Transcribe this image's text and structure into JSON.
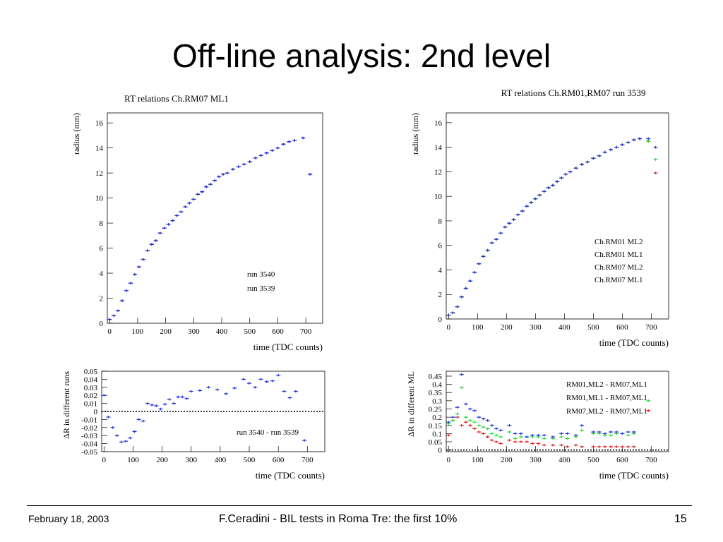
{
  "slide": {
    "title": "Off-line analysis: 2nd level",
    "footer_left": "February 18, 2003",
    "footer_center": "F.Ceradini - BIL tests in Roma Tre: the first 10%",
    "footer_right": "15"
  },
  "chart_data": [
    {
      "type": "scatter",
      "title": "RT relations Ch.RM07 ML1",
      "xlabel": "time (TDC counts)",
      "ylabel": "radius (mm)",
      "xlim": [
        -8,
        760
      ],
      "ylim": [
        0,
        16.8
      ],
      "xticks": [
        0,
        100,
        200,
        300,
        400,
        500,
        600,
        700
      ],
      "yticks": [
        0,
        2,
        4,
        6,
        8,
        10,
        12,
        14,
        16
      ],
      "legend_position": "center-right",
      "series": [
        {
          "name": "run 3540",
          "color": "#2233dd",
          "x": [
            0,
            15,
            30,
            45,
            60,
            75,
            90,
            105,
            120,
            135,
            150,
            165,
            180,
            195,
            210,
            225,
            240,
            255,
            270,
            285,
            300,
            315,
            330,
            345,
            360,
            375,
            390,
            405,
            420,
            440,
            460,
            480,
            500,
            520,
            540,
            560,
            580,
            600,
            620,
            640,
            660,
            690,
            715
          ],
          "y": [
            0.3,
            0.6,
            1.0,
            1.8,
            2.6,
            3.2,
            3.9,
            4.5,
            5.1,
            5.8,
            6.3,
            6.6,
            7.2,
            7.6,
            7.9,
            8.2,
            8.6,
            8.9,
            9.3,
            9.6,
            9.9,
            10.3,
            10.5,
            10.9,
            11.1,
            11.4,
            11.7,
            11.9,
            12.0,
            12.3,
            12.5,
            12.7,
            12.9,
            13.2,
            13.4,
            13.6,
            13.8,
            14.0,
            14.3,
            14.5,
            14.6,
            14.8,
            11.9
          ]
        },
        {
          "name": "run 3539",
          "color": "#222222",
          "x": [
            0,
            15,
            30,
            45,
            60,
            75,
            90,
            105,
            120,
            135,
            150,
            165,
            180,
            195,
            210,
            225,
            240,
            255,
            270,
            285,
            300,
            315,
            330,
            345,
            360,
            375,
            390,
            405,
            420,
            440,
            460,
            480,
            500,
            520,
            540,
            560,
            580,
            600,
            620,
            640,
            660,
            690,
            715
          ],
          "y": [
            0.3,
            0.6,
            1.0,
            1.8,
            2.6,
            3.2,
            3.9,
            4.5,
            5.1,
            5.8,
            6.3,
            6.6,
            7.2,
            7.6,
            7.9,
            8.2,
            8.6,
            8.9,
            9.3,
            9.6,
            9.9,
            10.3,
            10.5,
            10.9,
            11.1,
            11.4,
            11.7,
            11.9,
            12.0,
            12.3,
            12.5,
            12.7,
            12.9,
            13.2,
            13.4,
            13.6,
            13.8,
            14.0,
            14.3,
            14.5,
            14.6,
            14.8,
            11.9
          ]
        }
      ]
    },
    {
      "type": "scatter",
      "title": "RT relations Ch.RM01,RM07 run 3539",
      "xlabel": "time (TDC counts)",
      "ylabel": "radius (mm)",
      "xlim": [
        -8,
        760
      ],
      "ylim": [
        0,
        16.8
      ],
      "xticks": [
        0,
        100,
        200,
        300,
        400,
        500,
        600,
        700
      ],
      "yticks": [
        0,
        2,
        4,
        6,
        8,
        10,
        12,
        14,
        16
      ],
      "legend_position": "center-right",
      "series": [
        {
          "name": "Ch.RM01 ML2",
          "color": "#2233dd",
          "x": [
            0,
            15,
            30,
            45,
            60,
            75,
            90,
            105,
            120,
            135,
            150,
            165,
            180,
            195,
            210,
            225,
            240,
            255,
            270,
            285,
            300,
            315,
            330,
            345,
            360,
            375,
            390,
            405,
            420,
            440,
            460,
            480,
            500,
            520,
            540,
            560,
            580,
            600,
            620,
            640,
            660,
            690,
            715
          ],
          "y": [
            0.3,
            0.5,
            1.0,
            1.8,
            2.5,
            3.1,
            3.8,
            4.5,
            5.1,
            5.6,
            6.2,
            6.5,
            7.0,
            7.5,
            7.8,
            8.1,
            8.5,
            8.8,
            9.2,
            9.5,
            9.8,
            10.1,
            10.4,
            10.7,
            10.9,
            11.2,
            11.5,
            11.8,
            12.0,
            12.3,
            12.6,
            12.8,
            13.1,
            13.3,
            13.6,
            13.8,
            14.0,
            14.2,
            14.4,
            14.6,
            14.7,
            14.7,
            14.0
          ]
        },
        {
          "name": "Ch.RM01 ML1",
          "color": "#22dd33",
          "x": [
            0,
            15,
            30,
            45,
            60,
            75,
            90,
            105,
            120,
            135,
            150,
            165,
            180,
            195,
            210,
            225,
            240,
            255,
            270,
            285,
            300,
            315,
            330,
            345,
            360,
            375,
            390,
            405,
            420,
            440,
            460,
            480,
            500,
            520,
            540,
            560,
            580,
            600,
            620,
            640,
            660,
            690,
            715
          ],
          "y": [
            0.3,
            0.5,
            1.0,
            1.8,
            2.5,
            3.1,
            3.8,
            4.5,
            5.1,
            5.6,
            6.2,
            6.5,
            7.0,
            7.5,
            7.8,
            8.1,
            8.5,
            8.8,
            9.2,
            9.5,
            9.8,
            10.1,
            10.4,
            10.7,
            10.9,
            11.2,
            11.5,
            11.8,
            12.0,
            12.3,
            12.6,
            12.8,
            13.1,
            13.3,
            13.6,
            13.8,
            14.0,
            14.2,
            14.4,
            14.6,
            14.7,
            14.5,
            13.0
          ]
        },
        {
          "name": "Ch.RM07 ML2",
          "color": "#dd2222",
          "x": [
            0,
            15,
            30,
            45,
            60,
            75,
            90,
            105,
            120,
            135,
            150,
            165,
            180,
            195,
            210,
            225,
            240,
            255,
            270,
            285,
            300,
            315,
            330,
            345,
            360,
            375,
            390,
            405,
            420,
            440,
            460,
            480,
            500,
            520,
            540,
            560,
            580,
            600,
            620,
            640,
            660,
            690,
            715
          ],
          "y": [
            0.3,
            0.5,
            1.0,
            1.8,
            2.5,
            3.1,
            3.8,
            4.5,
            5.1,
            5.6,
            6.2,
            6.5,
            7.0,
            7.5,
            7.8,
            8.1,
            8.5,
            8.8,
            9.2,
            9.5,
            9.8,
            10.1,
            10.4,
            10.7,
            10.9,
            11.2,
            11.5,
            11.8,
            12.0,
            12.3,
            12.6,
            12.8,
            13.1,
            13.3,
            13.6,
            13.8,
            14.0,
            14.2,
            14.4,
            14.6,
            14.7,
            14.5,
            11.9
          ]
        },
        {
          "name": "Ch.RM07 ML1",
          "color": "#222222",
          "x": [
            0,
            15,
            30,
            45,
            60,
            75,
            90,
            105,
            120,
            135,
            150,
            165,
            180,
            195,
            210,
            225,
            240,
            255,
            270,
            285,
            300,
            315,
            330,
            345,
            360,
            375,
            390,
            405,
            420,
            440,
            460,
            480,
            500,
            520,
            540,
            560,
            580,
            600,
            620,
            640,
            660,
            690
          ],
          "y": [
            0.3,
            0.5,
            1.0,
            1.8,
            2.5,
            3.1,
            3.8,
            4.5,
            5.1,
            5.6,
            6.2,
            6.5,
            7.0,
            7.5,
            7.8,
            8.1,
            8.5,
            8.8,
            9.2,
            9.5,
            9.8,
            10.1,
            10.4,
            10.7,
            10.9,
            11.2,
            11.5,
            11.8,
            12.0,
            12.3,
            12.6,
            12.8,
            13.1,
            13.3,
            13.6,
            13.8,
            14.0,
            14.2,
            14.4,
            14.6,
            14.7,
            14.5
          ]
        }
      ]
    },
    {
      "type": "scatter",
      "title": "",
      "xlabel": "time (TDC counts)",
      "ylabel": "ΔR in different runs",
      "xlim": [
        -8,
        760
      ],
      "ylim": [
        -0.05,
        0.05
      ],
      "xticks": [
        0,
        100,
        200,
        300,
        400,
        500,
        600,
        700
      ],
      "yticks": [
        -0.05,
        -0.04,
        -0.03,
        -0.02,
        -0.01,
        0,
        0.01,
        0.02,
        0.03,
        0.04,
        0.05
      ],
      "ytick_labels": [
        "-0.05",
        "-0.04",
        "-0.03",
        "-0.02",
        "-0.01",
        "0",
        "0.01",
        "0.02",
        "0.03",
        "0.04",
        "0.05"
      ],
      "zero_line": true,
      "legend_position": "bottom-right",
      "series": [
        {
          "name": "run 3540 - run 3539",
          "color": "#2233dd",
          "x": [
            0,
            15,
            30,
            45,
            60,
            75,
            90,
            105,
            120,
            135,
            150,
            165,
            180,
            195,
            210,
            225,
            240,
            255,
            270,
            285,
            300,
            330,
            360,
            390,
            420,
            450,
            480,
            500,
            520,
            540,
            560,
            580,
            600,
            620,
            640,
            660,
            690
          ],
          "y": [
            0.02,
            -0.007,
            -0.02,
            -0.03,
            -0.038,
            -0.037,
            -0.033,
            -0.025,
            -0.01,
            -0.012,
            0.01,
            0.008,
            0.007,
            0.003,
            0.009,
            0.015,
            0.01,
            0.018,
            0.018,
            0.016,
            0.025,
            0.026,
            0.03,
            0.027,
            0.022,
            0.029,
            0.04,
            0.035,
            0.03,
            0.04,
            0.037,
            0.038,
            0.045,
            0.025,
            0.017,
            0.025,
            -0.036
          ]
        }
      ]
    },
    {
      "type": "scatter",
      "title": "",
      "xlabel": "time (TDC counts)",
      "ylabel": "ΔR in different ML",
      "xlim": [
        -8,
        760
      ],
      "ylim": [
        -0.01,
        0.48
      ],
      "xticks": [
        0,
        100,
        200,
        300,
        400,
        500,
        600,
        700
      ],
      "yticks": [
        0,
        0.05,
        0.1,
        0.15,
        0.2,
        0.25,
        0.3,
        0.35,
        0.4,
        0.45
      ],
      "ytick_labels": [
        "0",
        "0.05",
        "0.1",
        "0.15",
        "0.2",
        "0.25",
        "0.3",
        "0.35",
        "0.4",
        "0.45"
      ],
      "zero_line": true,
      "legend_position": "top-right",
      "series": [
        {
          "name": "RM01,ML2 - RM07,ML1",
          "color": "#2233dd",
          "x": [
            0,
            15,
            30,
            45,
            60,
            75,
            90,
            105,
            120,
            135,
            150,
            165,
            180,
            210,
            230,
            250,
            270,
            290,
            310,
            330,
            360,
            390,
            410,
            440,
            460,
            500,
            520,
            540,
            560,
            580,
            600,
            620,
            640
          ],
          "y": [
            0.17,
            0.2,
            0.26,
            0.46,
            0.28,
            0.25,
            0.24,
            0.2,
            0.19,
            0.18,
            0.15,
            0.13,
            0.12,
            0.15,
            0.1,
            0.1,
            0.08,
            0.09,
            0.09,
            0.09,
            0.08,
            0.1,
            0.1,
            0.09,
            0.15,
            0.11,
            0.11,
            0.1,
            0.11,
            0.11,
            0.1,
            0.11,
            0.11
          ]
        },
        {
          "name": "RM01,ML1 - RM07,ML1",
          "color": "#22dd33",
          "x": [
            0,
            15,
            30,
            45,
            60,
            75,
            90,
            105,
            120,
            135,
            150,
            165,
            180,
            210,
            230,
            250,
            270,
            290,
            310,
            330,
            360,
            390,
            410,
            440,
            460,
            500,
            520,
            540,
            560,
            580,
            600,
            620,
            640,
            690
          ],
          "y": [
            0.16,
            0.18,
            0.22,
            0.38,
            0.2,
            0.18,
            0.17,
            0.15,
            0.14,
            0.13,
            0.1,
            0.09,
            0.08,
            0.11,
            0.07,
            0.08,
            0.08,
            0.08,
            0.08,
            0.07,
            0.07,
            0.08,
            0.07,
            0.08,
            0.12,
            0.1,
            0.1,
            0.09,
            0.09,
            0.1,
            0.1,
            0.09,
            0.1,
            0.3
          ]
        },
        {
          "name": "RM07,ML2 - RM07,ML1",
          "color": "#dd2222",
          "x": [
            0,
            15,
            30,
            45,
            60,
            75,
            90,
            105,
            120,
            135,
            150,
            165,
            180,
            210,
            230,
            250,
            270,
            290,
            310,
            330,
            360,
            390,
            410,
            440,
            460,
            500,
            520,
            540,
            560,
            580,
            600,
            620,
            640,
            690
          ],
          "y": [
            0.09,
            0.18,
            0.2,
            0.15,
            0.17,
            0.15,
            0.13,
            0.11,
            0.1,
            0.08,
            0.06,
            0.05,
            0.04,
            0.06,
            0.05,
            0.05,
            0.05,
            0.04,
            0.04,
            0.03,
            0.03,
            0.03,
            0.02,
            0.03,
            0.02,
            0.02,
            0.02,
            0.02,
            0.02,
            0.02,
            0.02,
            0.02,
            0.02,
            0.24
          ]
        }
      ]
    }
  ]
}
